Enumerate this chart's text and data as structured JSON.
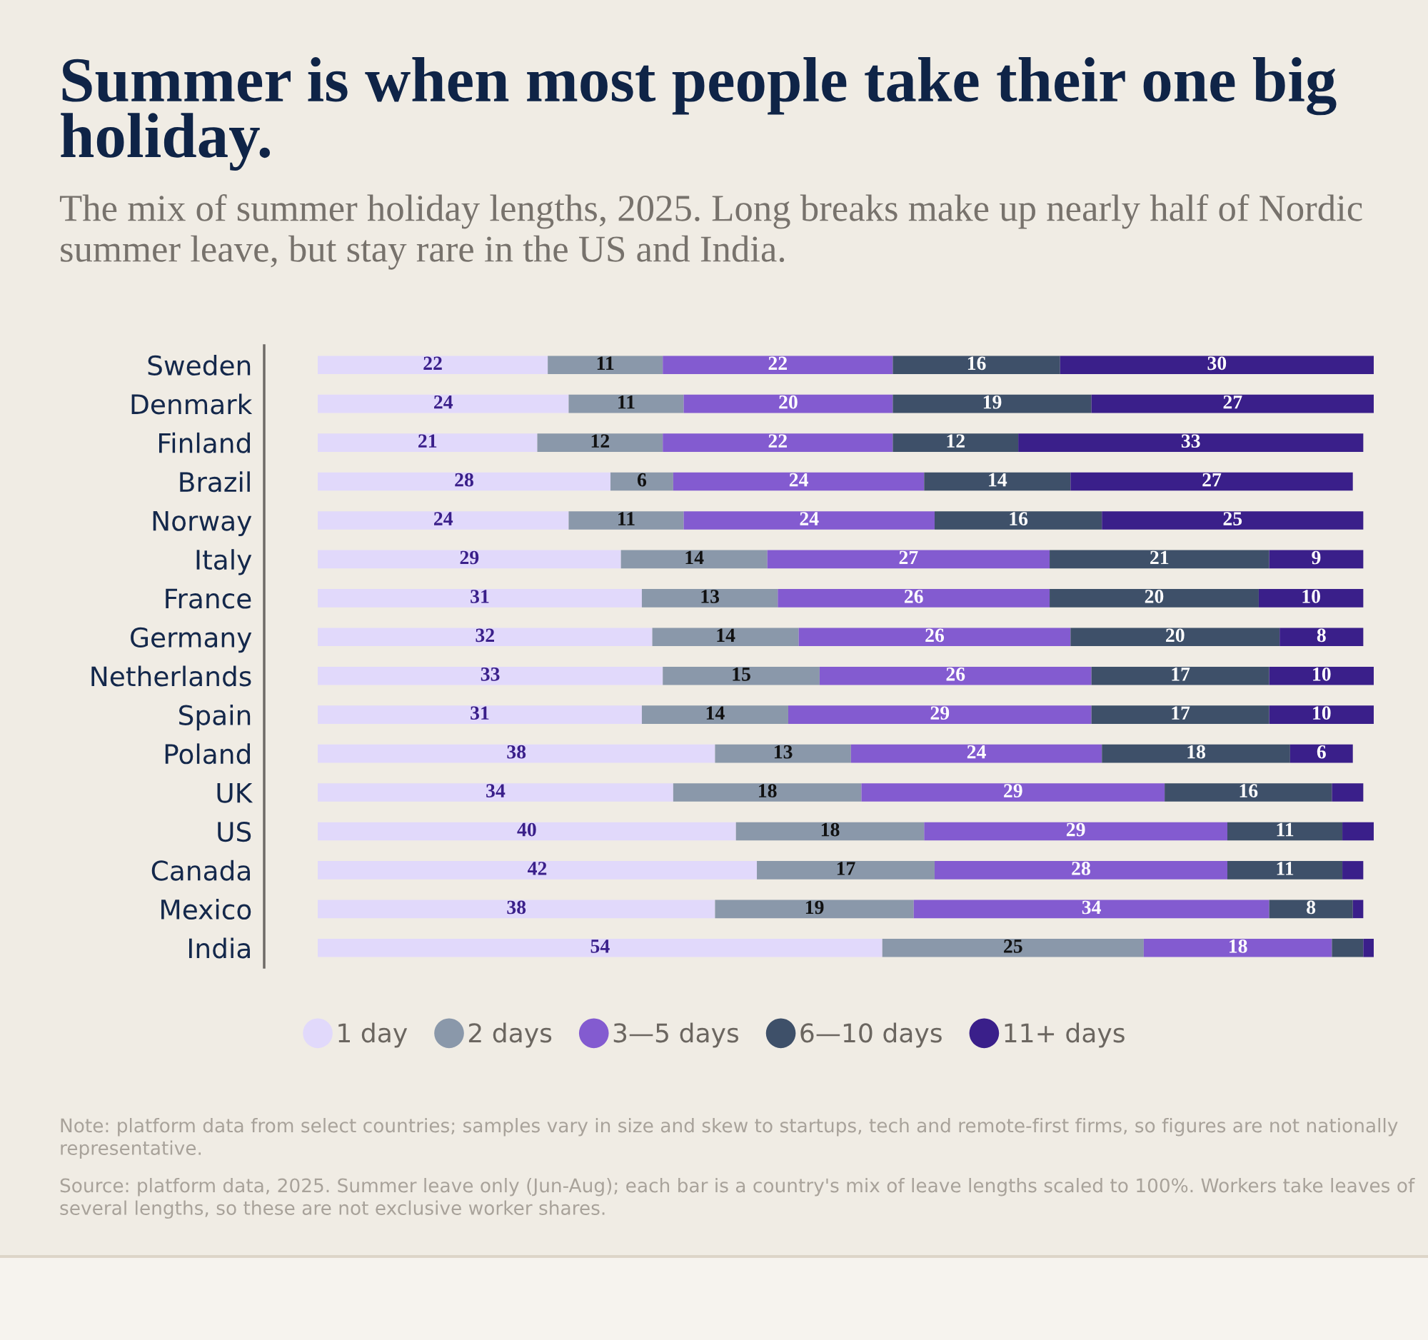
{
  "chart_data": {
    "type": "bar",
    "orientation": "horizontal",
    "stacked": true,
    "title": "Summer is when most people take their one big holiday.",
    "subtitle": "The mix of summer holiday lengths, 2025. Long breaks make up nearly half of Nordic summer leave, but stay rare in the US and India.",
    "categories": [
      "Sweden",
      "Denmark",
      "Finland",
      "Brazil",
      "Norway",
      "Italy",
      "France",
      "Germany",
      "Netherlands",
      "Spain",
      "Poland",
      "UK",
      "US",
      "Canada",
      "Mexico",
      "India"
    ],
    "series": [
      {
        "name": "1 day",
        "color": "#e1d9fb",
        "values": [
          22,
          24,
          21,
          28,
          24,
          29,
          31,
          32,
          33,
          31,
          38,
          34,
          40,
          42,
          38,
          54
        ],
        "value_labels": [
          "22",
          "24",
          "21",
          "28",
          "24",
          "29",
          "31",
          "32",
          "33",
          "31",
          "38",
          "34",
          "40",
          "42",
          "38",
          "54"
        ]
      },
      {
        "name": "2 days",
        "color": "#8a98aa",
        "values": [
          11,
          11,
          12,
          6,
          11,
          14,
          13,
          14,
          15,
          14,
          13,
          18,
          18,
          17,
          19,
          25
        ],
        "value_labels": [
          "11",
          "11",
          "12",
          "6",
          "11",
          "14",
          "13",
          "14",
          "15",
          "14",
          "13",
          "18",
          "18",
          "17",
          "19",
          "25"
        ]
      },
      {
        "name": "3—5 days",
        "color": "#835bd0",
        "values": [
          22,
          20,
          22,
          24,
          24,
          27,
          26,
          26,
          26,
          29,
          24,
          29,
          29,
          28,
          34,
          18
        ],
        "value_labels": [
          "22",
          "20",
          "22",
          "24",
          "24",
          "27",
          "26",
          "26",
          "26",
          "29",
          "24",
          "29",
          "29",
          "28",
          "34",
          "18"
        ]
      },
      {
        "name": "6—10 days",
        "color": "#3e5069",
        "values": [
          16,
          19,
          12,
          14,
          16,
          21,
          20,
          20,
          17,
          17,
          18,
          16,
          11,
          11,
          8,
          3
        ],
        "value_labels": [
          "16",
          "19",
          "12",
          "14",
          "16",
          "21",
          "20",
          "20",
          "17",
          "17",
          "18",
          "16",
          "11",
          "11",
          "8",
          null
        ]
      },
      {
        "name": "11+ days",
        "color": "#3a1f8a",
        "values": [
          30,
          27,
          33,
          27,
          25,
          9,
          10,
          8,
          10,
          10,
          6,
          3,
          3,
          2,
          1,
          1
        ],
        "value_labels": [
          "30",
          "27",
          "33",
          "27",
          "25",
          "9",
          "10",
          "8",
          "10",
          "10",
          "6",
          null,
          null,
          null,
          null,
          null
        ]
      }
    ],
    "tick_labels": "y",
    "legend": "bottom",
    "annotations": [
      "Note: platform data from select countries; samples vary in size and skew to startups, tech and remote-first firms, so figures are not nationally representative.",
      "Source: platform data, 2025. Summer leave only (Jun-Aug); each bar is a country's mix of leave lengths scaled to 100%. Workers take leaves of several lengths, so these are not exclusive worker shares."
    ]
  }
}
